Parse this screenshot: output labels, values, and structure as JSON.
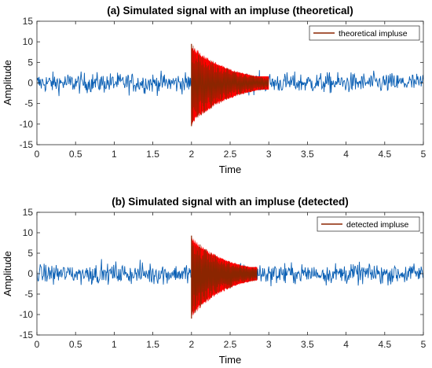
{
  "chart_data": [
    {
      "type": "line",
      "title": "(a) Simulated signal with an impluse (theoretical)",
      "xlabel": "Time",
      "ylabel": "Amplitude",
      "xlim": [
        0,
        5
      ],
      "ylim": [
        -15,
        15
      ],
      "xticks": [
        0,
        0.5,
        1,
        1.5,
        2,
        2.5,
        3,
        3.5,
        4,
        4.5,
        5
      ],
      "xticklabels": [
        "0",
        "0.5",
        "1",
        "1.5",
        "2",
        "2.5",
        "3",
        "3.5",
        "4",
        "4.5",
        "5"
      ],
      "yticks": [
        15,
        10,
        5,
        0,
        -5,
        -10,
        -15
      ],
      "yticklabels": [
        "15",
        "10",
        "5",
        "0",
        "-5",
        "-10",
        "-15"
      ],
      "legend_position": "top-right",
      "series": [
        {
          "role": "noise",
          "color": "#0a5fb4",
          "x_range": [
            0,
            5
          ],
          "amplitude": 2.2
        },
        {
          "name": "theoretical impluse",
          "color": "#ff0000",
          "edge_color": "#8b2500",
          "x_start": 2.0,
          "x_end": 3.0,
          "peak": 9.5,
          "trough": -10.5,
          "decay": 2.0
        }
      ]
    },
    {
      "type": "line",
      "title": "(b) Simulated signal with an impluse (detected)",
      "xlabel": "Time",
      "ylabel": "Amplitude",
      "xlim": [
        0,
        5
      ],
      "ylim": [
        -15,
        15
      ],
      "xticks": [
        0,
        0.5,
        1,
        1.5,
        2,
        2.5,
        3,
        3.5,
        4,
        4.5,
        5
      ],
      "xticklabels": [
        "0",
        "0.5",
        "1",
        "1.5",
        "2",
        "2.5",
        "3",
        "3.5",
        "4",
        "4.5",
        "5"
      ],
      "yticks": [
        15,
        10,
        5,
        0,
        -5,
        -10,
        -15
      ],
      "yticklabels": [
        "15",
        "10",
        "5",
        "0",
        "-5",
        "-10",
        "-15"
      ],
      "legend_position": "top-right",
      "series": [
        {
          "role": "noise",
          "color": "#0a5fb4",
          "x_range": [
            0,
            5
          ],
          "amplitude": 2.2
        },
        {
          "name": "detected impluse",
          "color": "#ff0000",
          "edge_color": "#8b2500",
          "x_start": 2.0,
          "x_end": 2.85,
          "peak": 9.3,
          "trough": -11.0,
          "decay": 2.2
        }
      ]
    }
  ]
}
